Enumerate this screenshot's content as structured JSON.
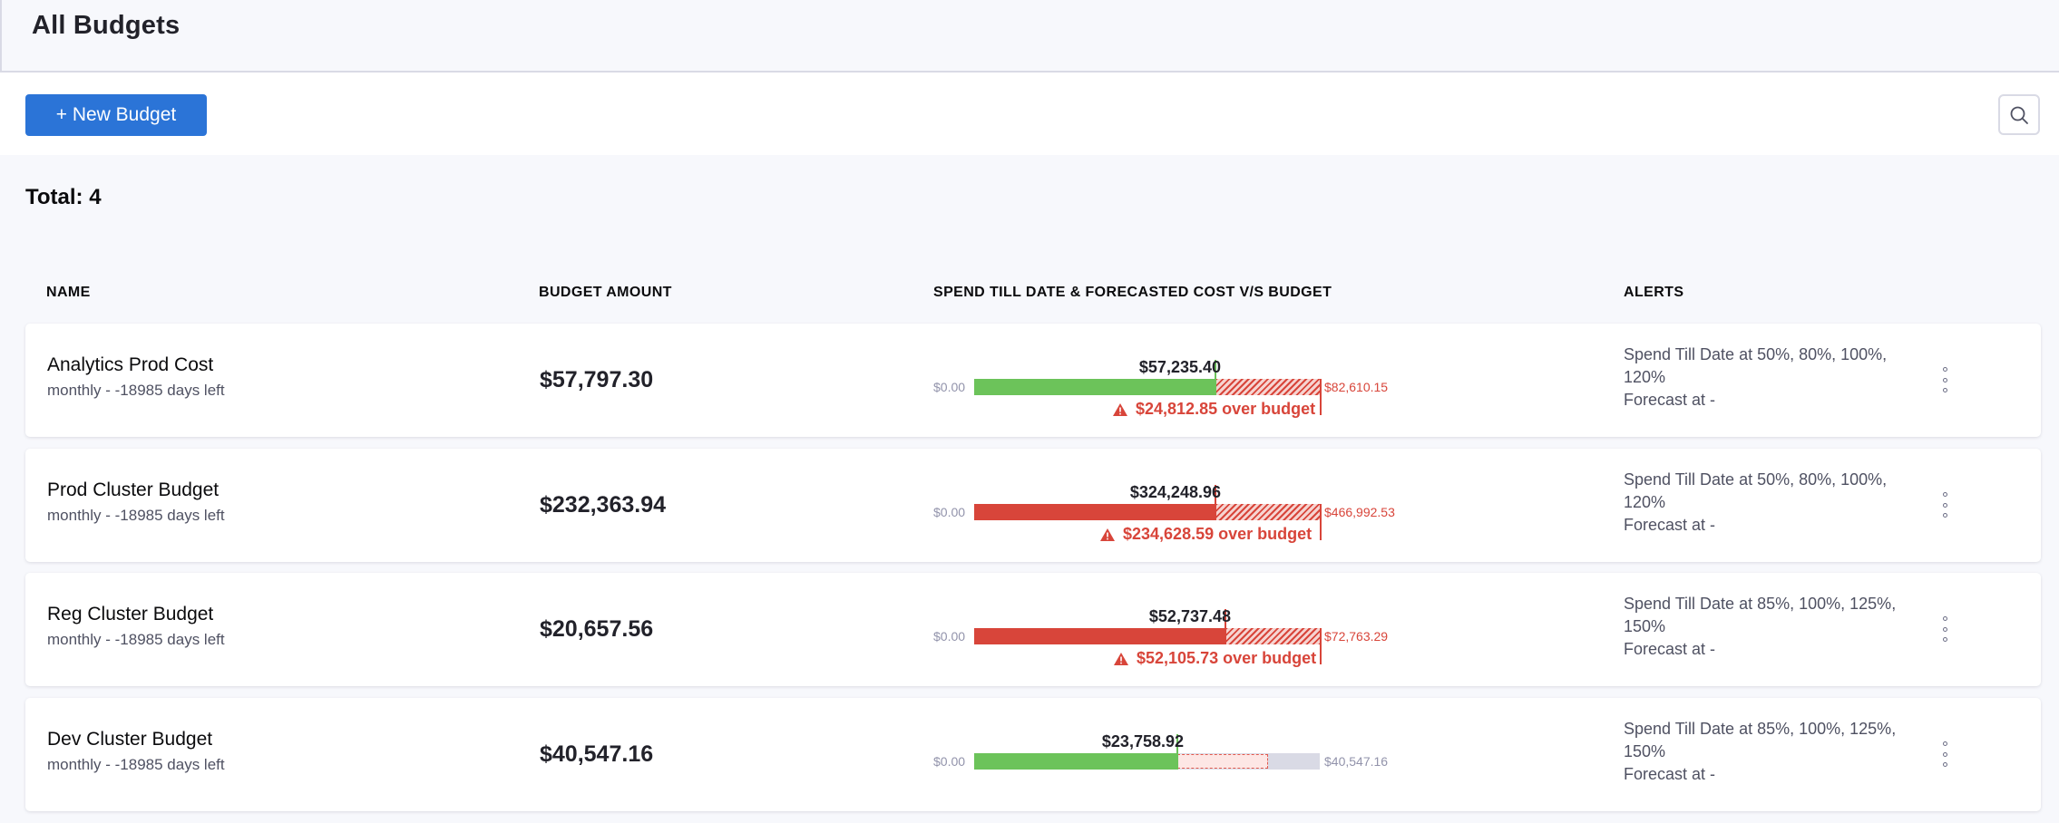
{
  "header": {
    "title": "All Budgets"
  },
  "toolbar": {
    "new_budget_label": "+ New Budget",
    "search_icon": "search-icon"
  },
  "summary": {
    "total_label": "Total: 4"
  },
  "columns": {
    "name": "NAME",
    "budget_amount": "BUDGET AMOUNT",
    "spend": "SPEND TILL DATE & FORECASTED COST V/S BUDGET",
    "alerts": "ALERTS"
  },
  "colors": {
    "primary": "#2b74d7",
    "spend_ok": "#6cc35a",
    "spend_over": "#d8453a",
    "track": "#d9dae5"
  },
  "budgets": [
    {
      "name": "Analytics Prod Cost",
      "period": "monthly - -18985 days left",
      "amount": "$57,797.30",
      "zero": "$0.00",
      "spend": "$57,235.40",
      "forecast": "$82,610.15",
      "over": "$24,812.85 over budget",
      "spend_fraction": 0.7,
      "alert_spend": "Spend Till Date at 50%, 80%, 100%, 120%",
      "alert_forecast": "Forecast at -"
    },
    {
      "name": "Prod Cluster Budget",
      "period": "monthly - -18985 days left",
      "amount": "$232,363.94",
      "zero": "$0.00",
      "spend": "$324,248.96",
      "forecast": "$466,992.53",
      "over": "$234,628.59 over budget",
      "spend_fraction": 0.7,
      "alert_spend": "Spend Till Date at 50%, 80%, 100%, 120%",
      "alert_forecast": "Forecast at -"
    },
    {
      "name": "Reg Cluster Budget",
      "period": "monthly - -18985 days left",
      "amount": "$20,657.56",
      "zero": "$0.00",
      "spend": "$52,737.48",
      "forecast": "$72,763.29",
      "over": "$52,105.73 over budget",
      "spend_fraction": 0.72,
      "alert_spend": "Spend Till Date at 85%, 100%, 125%, 150%",
      "alert_forecast": "Forecast at -"
    },
    {
      "name": "Dev Cluster Budget",
      "period": "monthly - -18985 days left",
      "amount": "$40,547.16",
      "zero": "$0.00",
      "spend": "$23,758.92",
      "forecast": "$40,547.16",
      "over": "",
      "spend_fraction": 0.59,
      "alert_spend": "Spend Till Date at 85%, 100%, 125%, 150%",
      "alert_forecast": "Forecast at -"
    }
  ]
}
